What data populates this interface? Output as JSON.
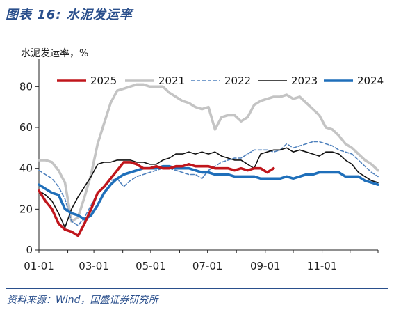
{
  "header": {
    "title": "图表 16:  水泥发运率"
  },
  "footer": {
    "source": "资料来源：Wind，国盛证券研究所"
  },
  "chart_data": {
    "type": "line",
    "title": "",
    "ylabel": "水泥发运率，%",
    "xlabel": "",
    "x_ticks": [
      "01-01",
      "03-01",
      "05-01",
      "07-01",
      "09-01",
      "11-01"
    ],
    "y_ticks": [
      0,
      20,
      40,
      60,
      80
    ],
    "ylim": [
      0,
      90
    ],
    "xlim": [
      "01-01",
      "12-31"
    ],
    "grid": false,
    "legend_position": "top",
    "series": [
      {
        "name": "2025",
        "color": "#c0161c",
        "style": "solid-thick",
        "points": [
          [
            "01-01",
            29
          ],
          [
            "01-08",
            24
          ],
          [
            "01-15",
            20
          ],
          [
            "01-22",
            13
          ],
          [
            "01-29",
            10
          ],
          [
            "02-05",
            9
          ],
          [
            "02-12",
            7
          ],
          [
            "02-19",
            13
          ],
          [
            "02-26",
            20
          ],
          [
            "03-05",
            28
          ],
          [
            "03-12",
            31
          ],
          [
            "03-19",
            35
          ],
          [
            "03-26",
            39
          ],
          [
            "04-02",
            43
          ],
          [
            "04-09",
            43
          ],
          [
            "04-16",
            42
          ],
          [
            "04-23",
            40
          ],
          [
            "04-30",
            40
          ],
          [
            "05-07",
            41
          ],
          [
            "05-14",
            40
          ],
          [
            "05-21",
            40
          ],
          [
            "05-28",
            41
          ],
          [
            "06-04",
            41
          ],
          [
            "06-11",
            42
          ],
          [
            "06-18",
            41
          ],
          [
            "06-25",
            41
          ],
          [
            "07-02",
            41
          ],
          [
            "07-09",
            40
          ],
          [
            "07-16",
            40
          ],
          [
            "07-23",
            40
          ],
          [
            "07-30",
            39
          ],
          [
            "08-06",
            40
          ],
          [
            "08-13",
            39
          ],
          [
            "08-20",
            40
          ],
          [
            "08-27",
            40
          ],
          [
            "09-03",
            38
          ],
          [
            "09-10",
            40
          ]
        ]
      },
      {
        "name": "2021",
        "color": "#c4c4c4",
        "style": "solid-thick",
        "points": [
          [
            "01-01",
            44
          ],
          [
            "01-08",
            44
          ],
          [
            "01-15",
            43
          ],
          [
            "01-22",
            39
          ],
          [
            "01-29",
            33
          ],
          [
            "02-05",
            14
          ],
          [
            "02-12",
            16
          ],
          [
            "02-19",
            26
          ],
          [
            "02-26",
            37
          ],
          [
            "03-05",
            52
          ],
          [
            "03-12",
            62
          ],
          [
            "03-19",
            72
          ],
          [
            "03-26",
            78
          ],
          [
            "04-02",
            79
          ],
          [
            "04-09",
            80
          ],
          [
            "04-16",
            81
          ],
          [
            "04-23",
            81
          ],
          [
            "04-30",
            80
          ],
          [
            "05-07",
            80
          ],
          [
            "05-14",
            80
          ],
          [
            "05-21",
            77
          ],
          [
            "05-28",
            75
          ],
          [
            "06-04",
            73
          ],
          [
            "06-11",
            72
          ],
          [
            "06-18",
            70
          ],
          [
            "06-25",
            69
          ],
          [
            "07-02",
            70
          ],
          [
            "07-09",
            59
          ],
          [
            "07-16",
            65
          ],
          [
            "07-23",
            66
          ],
          [
            "07-30",
            66
          ],
          [
            "08-06",
            63
          ],
          [
            "08-13",
            65
          ],
          [
            "08-20",
            71
          ],
          [
            "08-27",
            73
          ],
          [
            "09-03",
            74
          ],
          [
            "09-10",
            75
          ],
          [
            "09-17",
            75
          ],
          [
            "09-24",
            76
          ],
          [
            "10-01",
            74
          ],
          [
            "10-08",
            75
          ],
          [
            "10-15",
            72
          ],
          [
            "10-22",
            69
          ],
          [
            "10-29",
            66
          ],
          [
            "11-05",
            60
          ],
          [
            "11-12",
            59
          ],
          [
            "11-19",
            56
          ],
          [
            "11-26",
            52
          ],
          [
            "12-03",
            50
          ],
          [
            "12-10",
            47
          ],
          [
            "12-17",
            44
          ],
          [
            "12-24",
            42
          ],
          [
            "12-31",
            39
          ]
        ]
      },
      {
        "name": "2022",
        "color": "#4f81bd",
        "style": "dashed",
        "points": [
          [
            "01-01",
            39
          ],
          [
            "01-08",
            37
          ],
          [
            "01-15",
            35
          ],
          [
            "01-22",
            31
          ],
          [
            "01-29",
            25
          ],
          [
            "02-05",
            14
          ],
          [
            "02-12",
            12
          ],
          [
            "02-19",
            16
          ],
          [
            "02-26",
            22
          ],
          [
            "03-05",
            28
          ],
          [
            "03-12",
            31
          ],
          [
            "03-19",
            34
          ],
          [
            "03-26",
            35
          ],
          [
            "04-02",
            31
          ],
          [
            "04-09",
            34
          ],
          [
            "04-16",
            36
          ],
          [
            "04-23",
            37
          ],
          [
            "04-30",
            38
          ],
          [
            "05-07",
            39
          ],
          [
            "05-14",
            40
          ],
          [
            "05-21",
            40
          ],
          [
            "05-28",
            39
          ],
          [
            "06-04",
            38
          ],
          [
            "06-11",
            37
          ],
          [
            "06-18",
            37
          ],
          [
            "06-25",
            35
          ],
          [
            "07-02",
            39
          ],
          [
            "07-09",
            41
          ],
          [
            "07-16",
            43
          ],
          [
            "07-23",
            44
          ],
          [
            "07-30",
            45
          ],
          [
            "08-06",
            45
          ],
          [
            "08-13",
            47
          ],
          [
            "08-20",
            49
          ],
          [
            "08-27",
            49
          ],
          [
            "09-03",
            49
          ],
          [
            "09-10",
            48
          ],
          [
            "09-17",
            49
          ],
          [
            "09-24",
            52
          ],
          [
            "10-01",
            50
          ],
          [
            "10-08",
            51
          ],
          [
            "10-15",
            52
          ],
          [
            "10-22",
            53
          ],
          [
            "10-29",
            53
          ],
          [
            "11-05",
            52
          ],
          [
            "11-12",
            51
          ],
          [
            "11-19",
            49
          ],
          [
            "11-26",
            48
          ],
          [
            "12-03",
            47
          ],
          [
            "12-10",
            44
          ],
          [
            "12-17",
            41
          ],
          [
            "12-24",
            38
          ],
          [
            "12-31",
            36
          ]
        ]
      },
      {
        "name": "2023",
        "color": "#111111",
        "style": "solid-thin",
        "points": [
          [
            "01-01",
            29
          ],
          [
            "01-08",
            27
          ],
          [
            "01-15",
            24
          ],
          [
            "01-22",
            18
          ],
          [
            "01-29",
            11
          ],
          [
            "02-05",
            20
          ],
          [
            "02-12",
            26
          ],
          [
            "02-19",
            31
          ],
          [
            "02-26",
            36
          ],
          [
            "03-05",
            42
          ],
          [
            "03-12",
            43
          ],
          [
            "03-19",
            43
          ],
          [
            "03-26",
            44
          ],
          [
            "04-02",
            44
          ],
          [
            "04-09",
            44
          ],
          [
            "04-16",
            43
          ],
          [
            "04-23",
            43
          ],
          [
            "04-30",
            42
          ],
          [
            "05-07",
            42
          ],
          [
            "05-14",
            44
          ],
          [
            "05-21",
            45
          ],
          [
            "05-28",
            47
          ],
          [
            "06-04",
            47
          ],
          [
            "06-11",
            48
          ],
          [
            "06-18",
            47
          ],
          [
            "06-25",
            48
          ],
          [
            "07-02",
            47
          ],
          [
            "07-09",
            48
          ],
          [
            "07-16",
            46
          ],
          [
            "07-23",
            45
          ],
          [
            "07-30",
            44
          ],
          [
            "08-06",
            44
          ],
          [
            "08-13",
            42
          ],
          [
            "08-20",
            40
          ],
          [
            "08-27",
            47
          ],
          [
            "09-03",
            48
          ],
          [
            "09-10",
            49
          ],
          [
            "09-17",
            49
          ],
          [
            "09-24",
            50
          ],
          [
            "10-01",
            48
          ],
          [
            "10-08",
            49
          ],
          [
            "10-15",
            48
          ],
          [
            "10-22",
            47
          ],
          [
            "10-29",
            46
          ],
          [
            "11-05",
            48
          ],
          [
            "11-12",
            48
          ],
          [
            "11-19",
            47
          ],
          [
            "11-26",
            44
          ],
          [
            "12-03",
            42
          ],
          [
            "12-10",
            38
          ],
          [
            "12-17",
            36
          ],
          [
            "12-24",
            34
          ],
          [
            "12-31",
            33
          ]
        ]
      },
      {
        "name": "2024",
        "color": "#1f6fba",
        "style": "solid-thick",
        "points": [
          [
            "01-01",
            32
          ],
          [
            "01-08",
            30
          ],
          [
            "01-15",
            28
          ],
          [
            "01-22",
            27
          ],
          [
            "01-29",
            20
          ],
          [
            "02-05",
            18
          ],
          [
            "02-12",
            17
          ],
          [
            "02-19",
            15
          ],
          [
            "02-26",
            17
          ],
          [
            "03-05",
            22
          ],
          [
            "03-12",
            28
          ],
          [
            "03-19",
            32
          ],
          [
            "03-26",
            35
          ],
          [
            "04-02",
            37
          ],
          [
            "04-09",
            38
          ],
          [
            "04-16",
            39
          ],
          [
            "04-23",
            40
          ],
          [
            "04-30",
            40
          ],
          [
            "05-07",
            40
          ],
          [
            "05-14",
            41
          ],
          [
            "05-21",
            41
          ],
          [
            "05-28",
            40
          ],
          [
            "06-04",
            40
          ],
          [
            "06-11",
            40
          ],
          [
            "06-18",
            39
          ],
          [
            "06-25",
            38
          ],
          [
            "07-02",
            38
          ],
          [
            "07-09",
            37
          ],
          [
            "07-16",
            37
          ],
          [
            "07-23",
            37
          ],
          [
            "07-30",
            36
          ],
          [
            "08-06",
            36
          ],
          [
            "08-13",
            36
          ],
          [
            "08-20",
            36
          ],
          [
            "08-27",
            35
          ],
          [
            "09-03",
            35
          ],
          [
            "09-10",
            35
          ],
          [
            "09-17",
            35
          ],
          [
            "09-24",
            36
          ],
          [
            "10-01",
            35
          ],
          [
            "10-08",
            36
          ],
          [
            "10-15",
            37
          ],
          [
            "10-22",
            37
          ],
          [
            "10-29",
            38
          ],
          [
            "11-05",
            38
          ],
          [
            "11-12",
            38
          ],
          [
            "11-19",
            38
          ],
          [
            "11-26",
            36
          ],
          [
            "12-03",
            36
          ],
          [
            "12-10",
            36
          ],
          [
            "12-17",
            34
          ],
          [
            "12-24",
            33
          ],
          [
            "12-31",
            32
          ]
        ]
      }
    ]
  }
}
